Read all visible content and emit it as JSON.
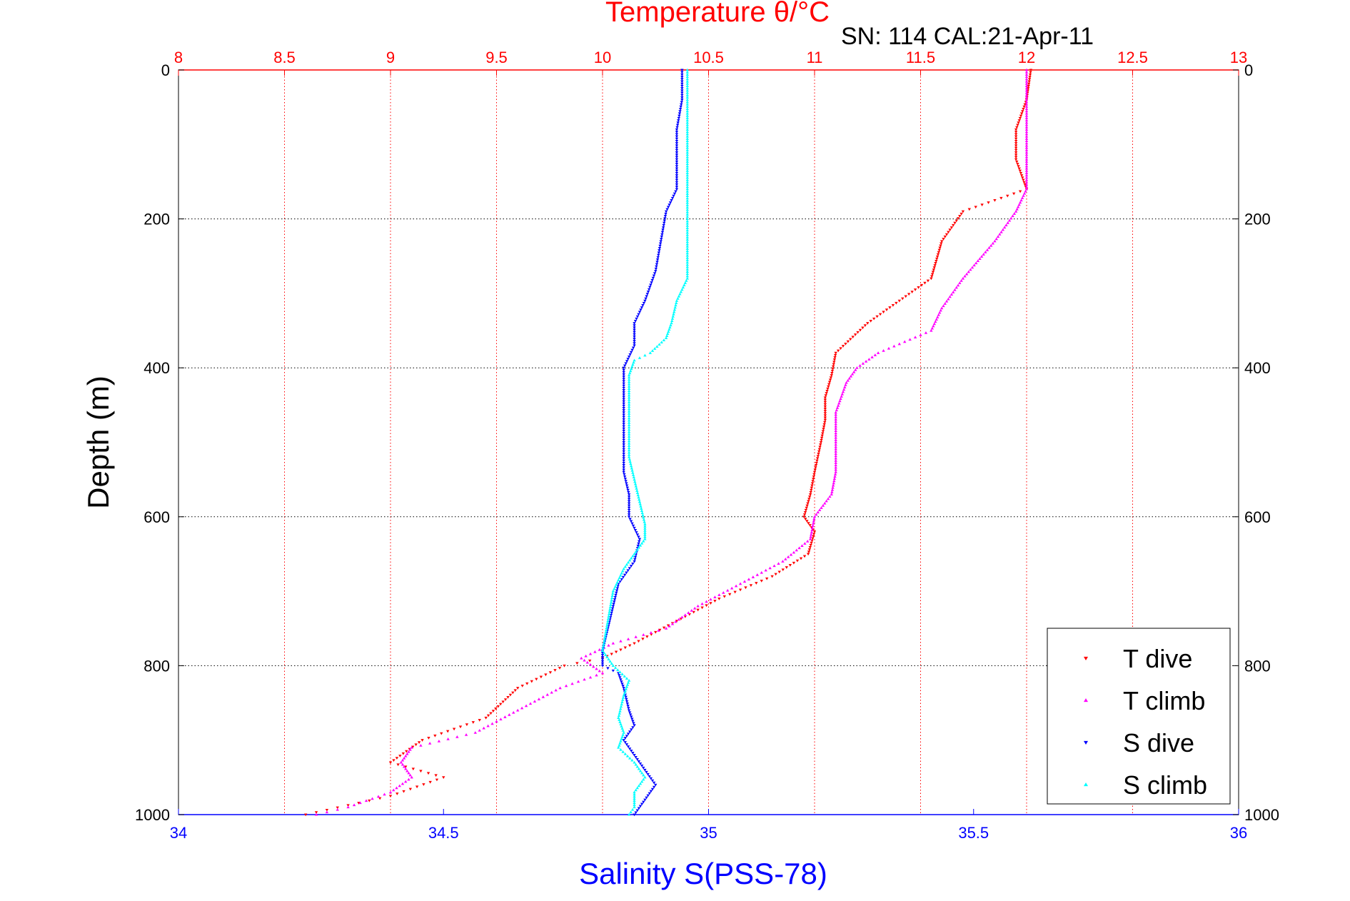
{
  "chart_data": {
    "type": "scatter",
    "title": "SN: 114  CAL:21-Apr-11",
    "top_axis": {
      "label": "Temperature θ/°C",
      "range": [
        8,
        13
      ],
      "ticks": [
        "8",
        "8.5",
        "9",
        "9.5",
        "10",
        "10.5",
        "11",
        "11.5",
        "12",
        "12.5",
        "13"
      ],
      "color": "#ff0000"
    },
    "bottom_axis": {
      "label": "Salinity S(PSS-78)",
      "range": [
        34,
        36
      ],
      "ticks": [
        "34",
        "34.5",
        "35",
        "35.5",
        "36"
      ],
      "color": "#0000ff"
    },
    "y_axis": {
      "label": "Depth (m)",
      "range": [
        0,
        1000
      ],
      "reversed": true,
      "ticks": [
        "0",
        "200",
        "400",
        "600",
        "800",
        "1000"
      ]
    },
    "grid": true,
    "legend_position": "bottom-right",
    "series": [
      {
        "name": "T dive",
        "axis": "temperature",
        "color": "#ff0000",
        "marker": "triangle-down",
        "points": [
          [
            12.02,
            0
          ],
          [
            12.0,
            40
          ],
          [
            11.95,
            80
          ],
          [
            11.95,
            120
          ],
          [
            12.0,
            160
          ],
          [
            11.7,
            190
          ],
          [
            11.6,
            230
          ],
          [
            11.55,
            280
          ],
          [
            11.4,
            310
          ],
          [
            11.25,
            340
          ],
          [
            11.1,
            380
          ],
          [
            11.08,
            410
          ],
          [
            11.05,
            440
          ],
          [
            11.05,
            470
          ],
          [
            11.03,
            500
          ],
          [
            11.0,
            540
          ],
          [
            10.98,
            570
          ],
          [
            10.95,
            600
          ],
          [
            11.0,
            620
          ],
          [
            10.97,
            650
          ],
          [
            10.8,
            680
          ],
          [
            10.55,
            710
          ],
          [
            10.35,
            740
          ],
          [
            10.15,
            770
          ],
          [
            10.0,
            790
          ],
          [
            9.82,
            800
          ],
          [
            9.6,
            830
          ],
          [
            9.45,
            870
          ],
          [
            9.15,
            900
          ],
          [
            9.0,
            930
          ],
          [
            9.25,
            950
          ],
          [
            9.0,
            975
          ],
          [
            8.6,
            1000
          ]
        ]
      },
      {
        "name": "T climb",
        "axis": "temperature",
        "color": "#ff00ff",
        "marker": "triangle-up",
        "points": [
          [
            12.0,
            0
          ],
          [
            12.0,
            40
          ],
          [
            12.0,
            80
          ],
          [
            12.0,
            120
          ],
          [
            12.0,
            160
          ],
          [
            11.95,
            190
          ],
          [
            11.85,
            230
          ],
          [
            11.7,
            280
          ],
          [
            11.6,
            320
          ],
          [
            11.55,
            350
          ],
          [
            11.3,
            380
          ],
          [
            11.2,
            400
          ],
          [
            11.15,
            420
          ],
          [
            11.1,
            460
          ],
          [
            11.1,
            500
          ],
          [
            11.1,
            540
          ],
          [
            11.08,
            570
          ],
          [
            11.0,
            600
          ],
          [
            10.98,
            630
          ],
          [
            10.85,
            660
          ],
          [
            10.65,
            690
          ],
          [
            10.45,
            720
          ],
          [
            10.3,
            750
          ],
          [
            10.05,
            770
          ],
          [
            9.9,
            790
          ],
          [
            10.0,
            810
          ],
          [
            9.8,
            830
          ],
          [
            9.6,
            860
          ],
          [
            9.4,
            890
          ],
          [
            9.1,
            910
          ],
          [
            9.05,
            930
          ],
          [
            9.1,
            950
          ],
          [
            9.0,
            970
          ],
          [
            8.8,
            990
          ],
          [
            8.65,
            1000
          ]
        ]
      },
      {
        "name": "S dive",
        "axis": "salinity",
        "color": "#0000ff",
        "marker": "triangle-down",
        "points": [
          [
            34.95,
            0
          ],
          [
            34.95,
            40
          ],
          [
            34.94,
            80
          ],
          [
            34.94,
            120
          ],
          [
            34.94,
            160
          ],
          [
            34.92,
            190
          ],
          [
            34.91,
            230
          ],
          [
            34.9,
            270
          ],
          [
            34.88,
            310
          ],
          [
            34.86,
            340
          ],
          [
            34.86,
            370
          ],
          [
            34.84,
            400
          ],
          [
            34.84,
            430
          ],
          [
            34.84,
            460
          ],
          [
            34.84,
            500
          ],
          [
            34.84,
            540
          ],
          [
            34.85,
            570
          ],
          [
            34.85,
            600
          ],
          [
            34.87,
            630
          ],
          [
            34.86,
            660
          ],
          [
            34.83,
            690
          ],
          [
            34.82,
            720
          ],
          [
            34.81,
            750
          ],
          [
            34.8,
            780
          ],
          [
            34.8,
            800
          ],
          [
            34.83,
            810
          ],
          [
            34.84,
            830
          ],
          [
            34.85,
            860
          ],
          [
            34.86,
            880
          ],
          [
            34.84,
            900
          ],
          [
            34.86,
            920
          ],
          [
            34.88,
            940
          ],
          [
            34.9,
            960
          ],
          [
            34.88,
            980
          ],
          [
            34.86,
            1000
          ]
        ]
      },
      {
        "name": "S climb",
        "axis": "salinity",
        "color": "#00ffff",
        "marker": "triangle-up",
        "points": [
          [
            34.96,
            0
          ],
          [
            34.96,
            40
          ],
          [
            34.96,
            80
          ],
          [
            34.96,
            120
          ],
          [
            34.96,
            160
          ],
          [
            34.96,
            200
          ],
          [
            34.96,
            240
          ],
          [
            34.96,
            280
          ],
          [
            34.94,
            310
          ],
          [
            34.93,
            340
          ],
          [
            34.92,
            360
          ],
          [
            34.89,
            380
          ],
          [
            34.86,
            390
          ],
          [
            34.85,
            410
          ],
          [
            34.85,
            440
          ],
          [
            34.85,
            480
          ],
          [
            34.85,
            520
          ],
          [
            34.86,
            550
          ],
          [
            34.87,
            580
          ],
          [
            34.88,
            610
          ],
          [
            34.88,
            630
          ],
          [
            34.86,
            650
          ],
          [
            34.84,
            670
          ],
          [
            34.82,
            700
          ],
          [
            34.81,
            740
          ],
          [
            34.8,
            780
          ],
          [
            34.82,
            800
          ],
          [
            34.85,
            820
          ],
          [
            34.84,
            840
          ],
          [
            34.83,
            870
          ],
          [
            34.84,
            890
          ],
          [
            34.83,
            910
          ],
          [
            34.86,
            930
          ],
          [
            34.88,
            950
          ],
          [
            34.86,
            970
          ],
          [
            34.86,
            990
          ],
          [
            34.85,
            1000
          ]
        ]
      }
    ]
  }
}
